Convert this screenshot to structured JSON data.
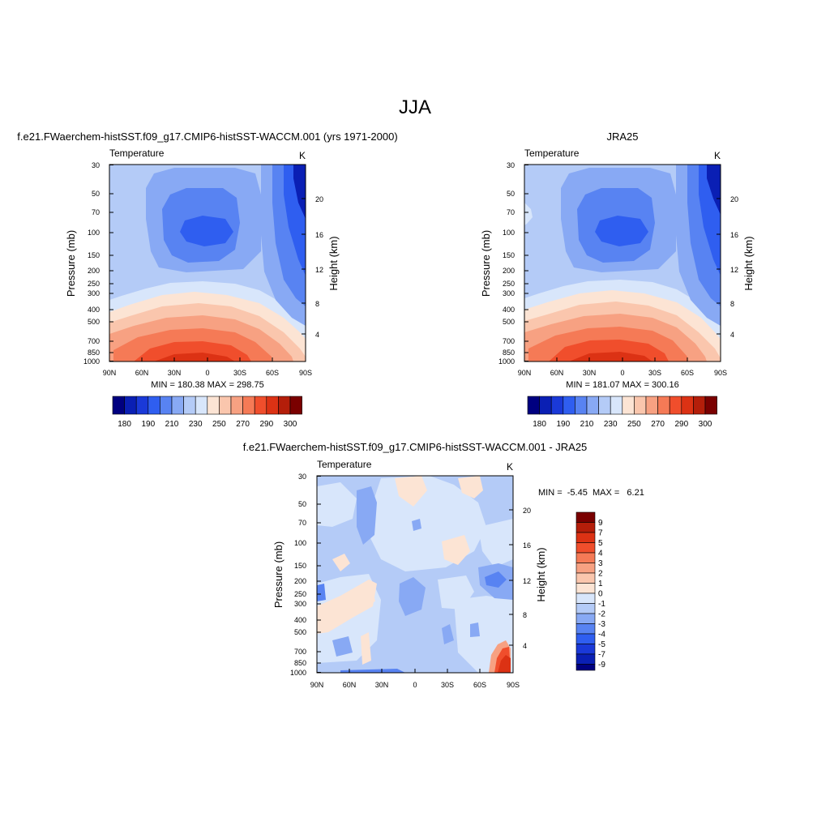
{
  "page": {
    "title": "JJA"
  },
  "panels": [
    {
      "title": "f.e21.FWaerchem-histSST.f09_g17.CMIP6-histSST-WACCM.001 (yrs 1971-2000)",
      "left_label": "Temperature",
      "right_label": "K",
      "stats": "MIN = 180.38  MAX = 298.75"
    },
    {
      "title": "JRA25",
      "left_label": "Temperature",
      "right_label": "K",
      "stats": "MIN = 181.07  MAX = 300.16"
    },
    {
      "title": "f.e21.FWaerchem-histSST.f09_g17.CMIP6-histSST-WACCM.001 - JRA25",
      "left_label": "Temperature",
      "right_label": "K",
      "stats": "MIN =  -5.45  MAX =   6.21"
    }
  ],
  "chart_data": [
    {
      "type": "heatmap",
      "title": "f.e21.FWaerchem-histSST.f09_g17.CMIP6-histSST-WACCM.001 (yrs 1971-2000)",
      "variable": "Temperature",
      "units": "K",
      "xlabel": "",
      "ylabel": "Pressure (mb)",
      "ylabel_right": "Height (km)",
      "x_ticks": [
        "90N",
        "60N",
        "30N",
        "0",
        "30S",
        "60S",
        "90S"
      ],
      "y_ticks": [
        30,
        50,
        70,
        100,
        150,
        200,
        250,
        300,
        400,
        500,
        700,
        850,
        1000
      ],
      "y_ticks_right": [
        4,
        8,
        12,
        16,
        20
      ],
      "y_scale": "log",
      "y_reversed": true,
      "min": 180.38,
      "max": 298.75,
      "colorbar_levels": [
        180,
        190,
        210,
        230,
        250,
        270,
        290,
        300
      ],
      "colors": [
        "#000080",
        "#0a1fb4",
        "#1a39d8",
        "#2f5ef0",
        "#5883f2",
        "#88a9f4",
        "#b4cbf7",
        "#d8e6fb",
        "#fce4d4",
        "#fac6ad",
        "#f7a182",
        "#f57a56",
        "#f04e2c",
        "#dc3214",
        "#b41e0a",
        "#7a0000"
      ]
    },
    {
      "type": "heatmap",
      "title": "JRA25",
      "variable": "Temperature",
      "units": "K",
      "xlabel": "",
      "ylabel": "Pressure (mb)",
      "ylabel_right": "Height (km)",
      "x_ticks": [
        "90N",
        "60N",
        "30N",
        "0",
        "30S",
        "60S",
        "90S"
      ],
      "y_ticks": [
        30,
        50,
        70,
        100,
        150,
        200,
        250,
        300,
        400,
        500,
        700,
        850,
        1000
      ],
      "y_ticks_right": [
        4,
        8,
        12,
        16,
        20
      ],
      "y_scale": "log",
      "y_reversed": true,
      "min": 181.07,
      "max": 300.16,
      "colorbar_levels": [
        180,
        190,
        210,
        230,
        250,
        270,
        290,
        300
      ],
      "colors": [
        "#000080",
        "#0a1fb4",
        "#1a39d8",
        "#2f5ef0",
        "#5883f2",
        "#88a9f4",
        "#b4cbf7",
        "#d8e6fb",
        "#fce4d4",
        "#fac6ad",
        "#f7a182",
        "#f57a56",
        "#f04e2c",
        "#dc3214",
        "#b41e0a",
        "#7a0000"
      ]
    },
    {
      "type": "heatmap",
      "title": "f.e21.FWaerchem-histSST.f09_g17.CMIP6-histSST-WACCM.001 - JRA25",
      "variable": "Temperature",
      "units": "K",
      "xlabel": "",
      "ylabel": "Pressure (mb)",
      "ylabel_right": "Height (km)",
      "x_ticks": [
        "90N",
        "60N",
        "30N",
        "0",
        "30S",
        "60S",
        "90S"
      ],
      "y_ticks": [
        30,
        50,
        70,
        100,
        150,
        200,
        250,
        300,
        400,
        500,
        700,
        850,
        1000
      ],
      "y_ticks_right": [
        4,
        8,
        12,
        16,
        20
      ],
      "y_scale": "log",
      "y_reversed": true,
      "min": -5.45,
      "max": 6.21,
      "colorbar_levels": [
        9,
        7,
        5,
        4,
        3,
        2,
        1,
        0,
        -1,
        -2,
        -3,
        -4,
        -5,
        -7,
        -9
      ],
      "colors": [
        "#7a0000",
        "#b41e0a",
        "#dc3214",
        "#f04e2c",
        "#f57a56",
        "#f7a182",
        "#fac6ad",
        "#fce4d4",
        "#d8e6fb",
        "#b4cbf7",
        "#88a9f4",
        "#5883f2",
        "#2f5ef0",
        "#1a39d8",
        "#0a1fb4",
        "#000080"
      ]
    }
  ]
}
